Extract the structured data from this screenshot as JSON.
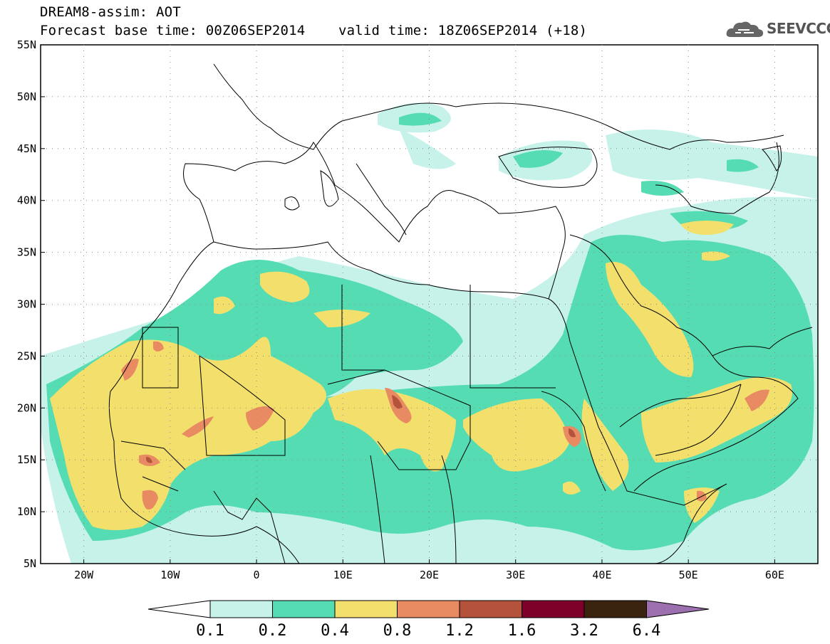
{
  "header": {
    "line1": "DREAM8-assim: AOT",
    "line2": "Forecast base time: 00Z06SEP2014    valid time: 18Z06SEP2014 (+18)"
  },
  "logo": {
    "text": "SEEVCCC",
    "icon": "cloud-logo-icon"
  },
  "map": {
    "lat_ticks": [
      "55N",
      "50N",
      "45N",
      "40N",
      "35N",
      "30N",
      "25N",
      "20N",
      "15N",
      "10N",
      "5N"
    ],
    "lon_ticks": [
      "20W",
      "10W",
      "0",
      "10E",
      "20E",
      "30E",
      "40E",
      "50E",
      "60E"
    ],
    "lat_values": [
      55,
      50,
      45,
      40,
      35,
      30,
      25,
      20,
      15,
      10,
      5
    ],
    "lon_values": [
      -20,
      -10,
      0,
      10,
      20,
      30,
      40,
      50,
      60
    ],
    "lon_range": [
      -25,
      65
    ],
    "lat_range": [
      5,
      55
    ],
    "grid": true
  },
  "colorbar": {
    "labels": [
      "0.1",
      "0.2",
      "0.4",
      "0.8",
      "1.2",
      "1.6",
      "3.2",
      "6.4"
    ],
    "colors": [
      "#c7f2ea",
      "#55dcb3",
      "#f3e06c",
      "#e88a62",
      "#b4523c",
      "#7d0028",
      "#3a2410",
      "#9c6fae"
    ]
  }
}
